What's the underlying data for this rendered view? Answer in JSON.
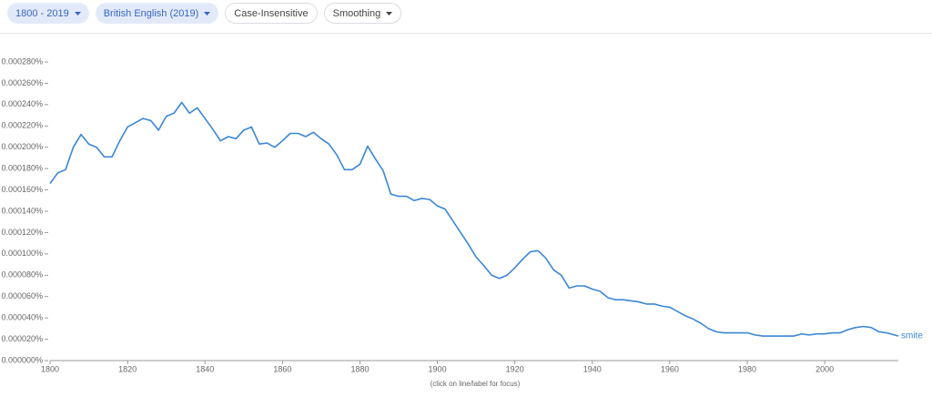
{
  "controls": [
    "1800 - 2019",
    "British English (2019)",
    "Case-Insensitive",
    "Smoothing"
  ],
  "chart_data": {
    "type": "line",
    "note": "(click on line/label for focus)",
    "xlim": [
      1800,
      2019
    ],
    "xticks": [
      1800,
      1820,
      1840,
      1860,
      1880,
      1900,
      1920,
      1940,
      1960,
      1980,
      2000
    ],
    "ylim": [
      0,
      0.00028
    ],
    "yticks": [
      {
        "value": 0,
        "label": "0.000000%"
      },
      {
        "value": 2e-05,
        "label": "0.000020%"
      },
      {
        "value": 4e-05,
        "label": "0.000040%"
      },
      {
        "value": 6e-05,
        "label": "0.000060%"
      },
      {
        "value": 8e-05,
        "label": "0.000080%"
      },
      {
        "value": 0.0001,
        "label": "0.000100%"
      },
      {
        "value": 0.00012,
        "label": "0.000120%"
      },
      {
        "value": 0.00014,
        "label": "0.000140%"
      },
      {
        "value": 0.00016,
        "label": "0.000160%"
      },
      {
        "value": 0.00018,
        "label": "0.000180%"
      },
      {
        "value": 0.0002,
        "label": "0.000200%"
      },
      {
        "value": 0.00022,
        "label": "0.000220%"
      },
      {
        "value": 0.00024,
        "label": "0.000240%"
      },
      {
        "value": 0.00026,
        "label": "0.000260%"
      },
      {
        "value": 0.00028,
        "label": "0.000280%"
      }
    ],
    "x": [
      1800,
      1802,
      1804,
      1806,
      1808,
      1810,
      1812,
      1814,
      1816,
      1818,
      1820,
      1822,
      1824,
      1826,
      1828,
      1830,
      1832,
      1834,
      1836,
      1838,
      1840,
      1842,
      1844,
      1846,
      1848,
      1850,
      1852,
      1854,
      1856,
      1858,
      1860,
      1862,
      1864,
      1866,
      1868,
      1870,
      1872,
      1874,
      1876,
      1878,
      1880,
      1882,
      1884,
      1886,
      1888,
      1890,
      1892,
      1894,
      1896,
      1898,
      1900,
      1902,
      1904,
      1906,
      1908,
      1910,
      1912,
      1914,
      1916,
      1918,
      1920,
      1922,
      1924,
      1926,
      1928,
      1930,
      1932,
      1934,
      1936,
      1938,
      1940,
      1942,
      1944,
      1946,
      1948,
      1950,
      1952,
      1954,
      1956,
      1958,
      1960,
      1962,
      1964,
      1966,
      1968,
      1970,
      1972,
      1974,
      1976,
      1978,
      1980,
      1982,
      1984,
      1986,
      1988,
      1990,
      1992,
      1994,
      1996,
      1998,
      2000,
      2002,
      2004,
      2006,
      2008,
      2010,
      2012,
      2014,
      2016,
      2018,
      2019
    ],
    "series": [
      {
        "name": "smite",
        "color": "#3a87d6",
        "values": [
          0.000166,
          0.000176,
          0.000179,
          0.0002,
          0.000212,
          0.000203,
          0.0002,
          0.000191,
          0.000191,
          0.000206,
          0.000219,
          0.000223,
          0.000227,
          0.000225,
          0.000216,
          0.000229,
          0.000232,
          0.000242,
          0.000232,
          0.000237,
          0.000227,
          0.000217,
          0.000206,
          0.00021,
          0.000208,
          0.000216,
          0.000219,
          0.000203,
          0.000204,
          0.0002,
          0.000206,
          0.000213,
          0.000213,
          0.00021,
          0.000214,
          0.000208,
          0.000203,
          0.000193,
          0.000179,
          0.000179,
          0.000184,
          0.000201,
          0.000189,
          0.000178,
          0.000156,
          0.000154,
          0.000154,
          0.00015,
          0.000152,
          0.000151,
          0.000145,
          0.000142,
          0.000131,
          0.00012,
          0.000109,
          9.7e-05,
          8.9e-05,
          8e-05,
          7.7e-05,
          8e-05,
          8.7e-05,
          9.5e-05,
          0.000102,
          0.000103,
          9.6e-05,
          8.5e-05,
          8e-05,
          6.8e-05,
          7e-05,
          7e-05,
          6.7e-05,
          6.5e-05,
          5.9e-05,
          5.7e-05,
          5.7e-05,
          5.6e-05,
          5.5e-05,
          5.3e-05,
          5.3e-05,
          5.1e-05,
          5e-05,
          4.6e-05,
          4.2e-05,
          3.9e-05,
          3.5e-05,
          3e-05,
          2.7e-05,
          2.6e-05,
          2.6e-05,
          2.6e-05,
          2.6e-05,
          2.4e-05,
          2.3e-05,
          2.3e-05,
          2.3e-05,
          2.3e-05,
          2.3e-05,
          2.5e-05,
          2.4e-05,
          2.5e-05,
          2.5e-05,
          2.6e-05,
          2.6e-05,
          2.9e-05,
          3.1e-05,
          3.2e-05,
          3.1e-05,
          2.7e-05,
          2.6e-05,
          2.4e-05,
          2.3e-05
        ]
      }
    ]
  }
}
